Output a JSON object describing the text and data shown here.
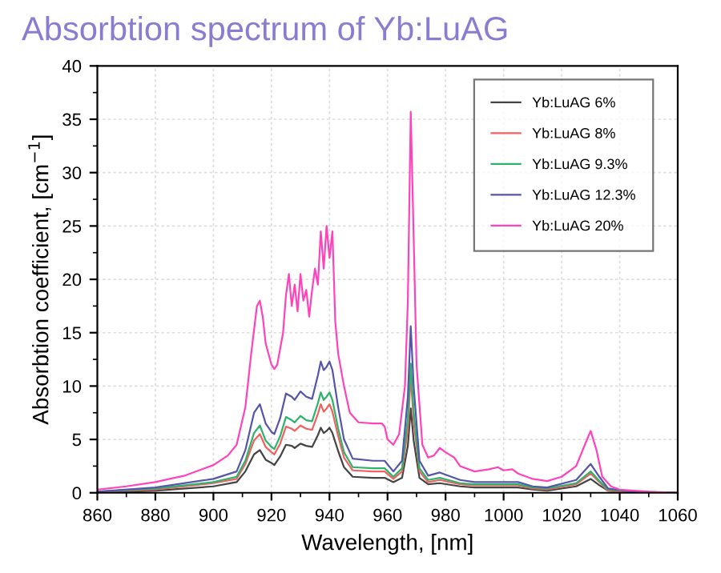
{
  "chart_data": {
    "type": "line",
    "title": "Absorbtion spectrum of Yb:LuAG",
    "xlabel": "Wavelength, [nm]",
    "ylabel": "Absorbtion coefficient, [cm$^{−1}$]",
    "xlim": [
      860,
      1060
    ],
    "ylim": [
      0,
      40
    ],
    "xticks": [
      860,
      880,
      900,
      920,
      940,
      960,
      980,
      1000,
      1020,
      1040,
      1060
    ],
    "yticks": [
      0,
      5,
      10,
      15,
      20,
      25,
      30,
      35,
      40
    ],
    "grid": true,
    "legend": "top right",
    "marker": "none",
    "line_style": "solid",
    "series": [
      {
        "name": "Yb:LuAG 6%",
        "color": "#444444",
        "x": [
          860,
          880,
          900,
          908,
          911,
          914,
          916,
          918,
          920,
          921,
          923,
          925,
          927,
          928,
          930,
          932,
          934,
          936,
          937,
          938,
          939,
          940,
          941,
          943,
          945,
          948,
          955,
          959,
          962,
          965,
          967,
          968,
          969,
          971,
          974,
          978,
          985,
          990,
          1000,
          1005,
          1010,
          1015,
          1025,
          1030,
          1033,
          1036,
          1045,
          1060
        ],
        "values": [
          0,
          0.2,
          0.6,
          1,
          2,
          3.6,
          4,
          3.1,
          2.8,
          2.6,
          3.4,
          4.5,
          4.4,
          4.2,
          4.6,
          4.4,
          4.3,
          5.4,
          6.1,
          5.6,
          5.8,
          6.1,
          5.6,
          3.9,
          2.4,
          1.5,
          1.4,
          1.4,
          1,
          1.4,
          4.4,
          7.9,
          4.9,
          1.4,
          0.8,
          0.9,
          0.6,
          0.5,
          0.5,
          0.5,
          0.3,
          0.2,
          0.6,
          1.3,
          0.7,
          0.2,
          0,
          0
        ]
      },
      {
        "name": "Yb:LuAG 8%",
        "color": "#f26060",
        "x": [
          860,
          880,
          900,
          908,
          911,
          914,
          916,
          918,
          920,
          921,
          923,
          925,
          927,
          928,
          930,
          932,
          934,
          936,
          937,
          938,
          939,
          940,
          941,
          943,
          945,
          948,
          955,
          959,
          962,
          965,
          967,
          968,
          969,
          971,
          974,
          978,
          985,
          990,
          1000,
          1005,
          1010,
          1015,
          1025,
          1030,
          1033,
          1036,
          1045,
          1060
        ],
        "values": [
          0.1,
          0.3,
          0.9,
          1.3,
          2.7,
          4.9,
          5.5,
          4.3,
          3.8,
          3.6,
          4.6,
          6.2,
          6,
          5.8,
          6.3,
          6,
          5.9,
          7.4,
          8.3,
          7.6,
          7.9,
          8.3,
          7.6,
          5.3,
          3.3,
          2.1,
          2,
          2,
          1.3,
          2,
          6,
          11,
          6.7,
          2,
          1,
          1.2,
          0.8,
          0.7,
          0.7,
          0.7,
          0.4,
          0.3,
          0.8,
          1.8,
          1,
          0.2,
          0,
          0
        ]
      },
      {
        "name": "Yb:LuAG 9.3%",
        "color": "#2db36b",
        "x": [
          860,
          880,
          900,
          908,
          911,
          914,
          916,
          918,
          920,
          921,
          923,
          925,
          927,
          928,
          930,
          932,
          934,
          936,
          937,
          938,
          939,
          940,
          941,
          943,
          945,
          948,
          955,
          959,
          962,
          965,
          967,
          968,
          969,
          971,
          974,
          978,
          985,
          990,
          1000,
          1005,
          1010,
          1015,
          1025,
          1030,
          1033,
          1036,
          1045,
          1060
        ],
        "values": [
          0.1,
          0.4,
          1,
          1.5,
          3,
          5.6,
          6.3,
          4.9,
          4.3,
          4.1,
          5.3,
          7.1,
          6.8,
          6.6,
          7.2,
          6.8,
          6.7,
          8.4,
          9.4,
          8.7,
          9,
          9.4,
          8.7,
          6,
          3.8,
          2.4,
          2.3,
          2.3,
          1.5,
          2.3,
          7,
          12.1,
          7.6,
          2.3,
          1.2,
          1.4,
          0.9,
          0.8,
          0.8,
          0.8,
          0.5,
          0.4,
          0.9,
          2,
          1.1,
          0.3,
          0.1,
          0
        ]
      },
      {
        "name": "Yb:LuAG 12.3%",
        "color": "#5555aa",
        "x": [
          860,
          880,
          900,
          908,
          911,
          914,
          916,
          918,
          920,
          921,
          923,
          925,
          927,
          928,
          930,
          932,
          934,
          936,
          937,
          938,
          939,
          940,
          941,
          943,
          945,
          948,
          955,
          959,
          962,
          965,
          967,
          968,
          969,
          971,
          974,
          978,
          985,
          990,
          1000,
          1005,
          1010,
          1015,
          1025,
          1030,
          1033,
          1036,
          1045,
          1060
        ],
        "values": [
          0.1,
          0.5,
          1.3,
          2,
          4,
          7.5,
          8.3,
          6.5,
          5.7,
          5.5,
          7,
          9.3,
          9,
          8.7,
          9.5,
          9,
          8.8,
          11,
          12.3,
          11.5,
          11.8,
          12.3,
          11.5,
          8,
          5,
          3.2,
          3,
          3,
          2,
          3,
          9,
          15.6,
          10,
          3,
          1.6,
          1.9,
          1.2,
          1,
          1,
          1,
          0.6,
          0.5,
          1.2,
          2.7,
          1.5,
          0.4,
          0.1,
          0
        ]
      },
      {
        "name": "Yb:LuAG 20%",
        "color": "#ff44bb",
        "x": [
          860,
          870,
          880,
          890,
          900,
          905,
          908,
          911,
          913,
          915,
          916,
          917,
          918,
          920,
          921,
          922,
          924,
          925,
          926,
          927,
          928,
          929,
          930,
          931,
          932,
          933,
          934,
          935,
          936,
          937,
          938,
          939,
          940,
          941,
          942,
          943,
          945,
          947,
          950,
          955,
          958,
          959,
          960,
          962,
          964,
          966,
          967,
          968,
          969,
          970,
          972,
          974,
          976,
          978,
          980,
          983,
          985,
          990,
          995,
          998,
          1000,
          1003,
          1005,
          1010,
          1015,
          1020,
          1025,
          1028,
          1030,
          1032,
          1034,
          1037,
          1040,
          1045,
          1050,
          1060
        ],
        "values": [
          0.3,
          0.6,
          1,
          1.6,
          2.6,
          3.5,
          4.5,
          8,
          13,
          17.5,
          18,
          16.5,
          14,
          12,
          11.6,
          12,
          15,
          18.5,
          20.5,
          17.5,
          19.5,
          17,
          20.5,
          18,
          19,
          16.5,
          19,
          21,
          19.5,
          24.5,
          21,
          25,
          22,
          24.5,
          16,
          13,
          10,
          7.5,
          6.6,
          6.5,
          6.5,
          6.2,
          5,
          4.5,
          5.5,
          10,
          18,
          35.7,
          24,
          12,
          4.5,
          3.3,
          3.5,
          4.2,
          3.8,
          3.3,
          2.5,
          2,
          2.2,
          2.4,
          2.1,
          2.2,
          1.8,
          1.3,
          1.1,
          1.5,
          2.5,
          4.5,
          5.8,
          4,
          1.5,
          0.6,
          0.3,
          0.2,
          0.1,
          0
        ]
      }
    ]
  }
}
